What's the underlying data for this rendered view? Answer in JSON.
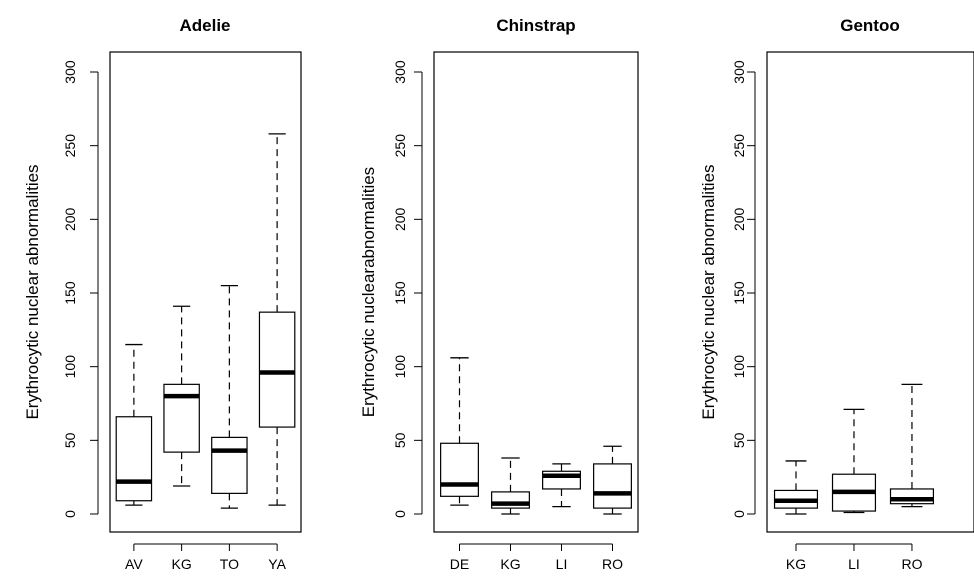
{
  "chart_data": [
    {
      "type": "box",
      "title": "Adelie",
      "ylabel": "Erythrocytic nuclear abnormalities",
      "ylim": [
        0,
        300
      ],
      "yticks": [
        0,
        50,
        100,
        150,
        200,
        250,
        300
      ],
      "categories": [
        "AV",
        "KG",
        "TO",
        "YA"
      ],
      "boxes": [
        {
          "min": 6,
          "q1": 9,
          "median": 22,
          "q3": 66,
          "max": 115
        },
        {
          "min": 19,
          "q1": 42,
          "median": 80,
          "q3": 88,
          "max": 141
        },
        {
          "min": 4,
          "q1": 14,
          "median": 43,
          "q3": 52,
          "max": 155
        },
        {
          "min": 6,
          "q1": 59,
          "median": 96,
          "q3": 137,
          "max": 258
        }
      ]
    },
    {
      "type": "box",
      "title": "Chinstrap",
      "ylabel": "Erythrocytic nuclearabnormalities",
      "ylim": [
        0,
        300
      ],
      "yticks": [
        0,
        50,
        100,
        150,
        200,
        250,
        300
      ],
      "categories": [
        "DE",
        "KG",
        "LI",
        "RO"
      ],
      "boxes": [
        {
          "min": 6,
          "q1": 12,
          "median": 20,
          "q3": 48,
          "max": 106
        },
        {
          "min": 0,
          "q1": 4,
          "median": 7,
          "q3": 15,
          "max": 38
        },
        {
          "min": 5,
          "q1": 17,
          "median": 26,
          "q3": 29,
          "max": 34
        },
        {
          "min": 0,
          "q1": 4,
          "median": 14,
          "q3": 34,
          "max": 46
        }
      ]
    },
    {
      "type": "box",
      "title": "Gentoo",
      "ylabel": "Erythrocytic  nuclear abnormalities",
      "ylim": [
        0,
        300
      ],
      "yticks": [
        0,
        50,
        100,
        150,
        200,
        250,
        300
      ],
      "categories": [
        "KG",
        "LI",
        "RO"
      ],
      "boxes": [
        {
          "min": 0,
          "q1": 4,
          "median": 9,
          "q3": 16,
          "max": 36
        },
        {
          "min": 1,
          "q1": 2,
          "median": 15,
          "q3": 27,
          "max": 71
        },
        {
          "min": 5,
          "q1": 7,
          "median": 10,
          "q3": 17,
          "max": 88
        }
      ]
    }
  ]
}
